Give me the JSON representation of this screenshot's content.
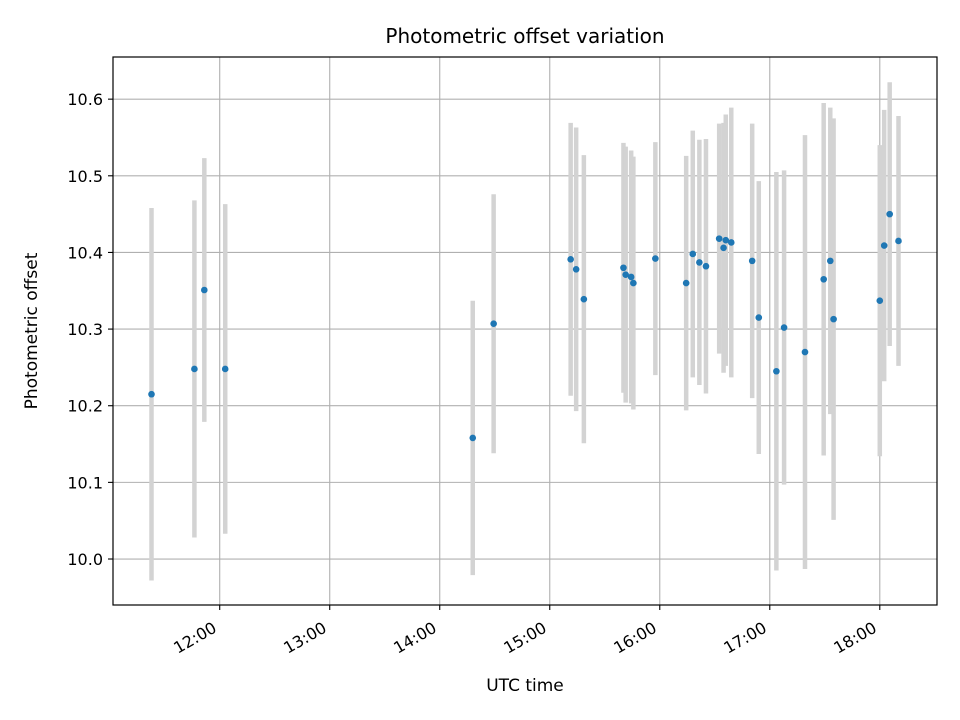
{
  "chart_data": {
    "type": "scatter",
    "title": "Photometric offset variation",
    "xlabel": "UTC time",
    "ylabel": "Photometric offset",
    "x_unit": "hours (UTC)",
    "xlim": [
      11.03,
      18.52
    ],
    "ylim": [
      9.94,
      10.655
    ],
    "x_ticks": [
      {
        "value": 12,
        "label": "12:00"
      },
      {
        "value": 13,
        "label": "13:00"
      },
      {
        "value": 14,
        "label": "14:00"
      },
      {
        "value": 15,
        "label": "15:00"
      },
      {
        "value": 16,
        "label": "16:00"
      },
      {
        "value": 17,
        "label": "17:00"
      },
      {
        "value": 18,
        "label": "18:00"
      }
    ],
    "y_ticks": [
      {
        "value": 10.0,
        "label": "10.0"
      },
      {
        "value": 10.1,
        "label": "10.1"
      },
      {
        "value": 10.2,
        "label": "10.2"
      },
      {
        "value": 10.3,
        "label": "10.3"
      },
      {
        "value": 10.4,
        "label": "10.4"
      },
      {
        "value": 10.5,
        "label": "10.5"
      },
      {
        "value": 10.6,
        "label": "10.6"
      }
    ],
    "grid": true,
    "colors": {
      "point": "#1f77b4",
      "errorbar": "#d3d3d3",
      "grid": "#b0b0b0"
    },
    "points": [
      {
        "x": 11.38,
        "y": 10.215,
        "err": 0.243
      },
      {
        "x": 11.77,
        "y": 10.248,
        "err": 0.22
      },
      {
        "x": 11.86,
        "y": 10.351,
        "err": 0.172
      },
      {
        "x": 12.05,
        "y": 10.248,
        "err": 0.215
      },
      {
        "x": 14.3,
        "y": 10.158,
        "err": 0.179
      },
      {
        "x": 14.49,
        "y": 10.307,
        "err": 0.169
      },
      {
        "x": 15.19,
        "y": 10.391,
        "err": 0.178
      },
      {
        "x": 15.24,
        "y": 10.378,
        "err": 0.185
      },
      {
        "x": 15.31,
        "y": 10.339,
        "err": 0.188
      },
      {
        "x": 15.67,
        "y": 10.38,
        "err": 0.163
      },
      {
        "x": 15.69,
        "y": 10.371,
        "err": 0.167
      },
      {
        "x": 15.74,
        "y": 10.368,
        "err": 0.165
      },
      {
        "x": 15.76,
        "y": 10.36,
        "err": 0.165
      },
      {
        "x": 15.96,
        "y": 10.392,
        "err": 0.152
      },
      {
        "x": 16.24,
        "y": 10.36,
        "err": 0.166
      },
      {
        "x": 16.3,
        "y": 10.398,
        "err": 0.161
      },
      {
        "x": 16.36,
        "y": 10.387,
        "err": 0.16
      },
      {
        "x": 16.42,
        "y": 10.382,
        "err": 0.166
      },
      {
        "x": 16.54,
        "y": 10.418,
        "err": 0.15
      },
      {
        "x": 16.58,
        "y": 10.406,
        "err": 0.163
      },
      {
        "x": 16.6,
        "y": 10.416,
        "err": 0.164
      },
      {
        "x": 16.65,
        "y": 10.413,
        "err": 0.176
      },
      {
        "x": 16.84,
        "y": 10.389,
        "err": 0.179
      },
      {
        "x": 16.9,
        "y": 10.315,
        "err": 0.178
      },
      {
        "x": 17.06,
        "y": 10.245,
        "err": 0.26
      },
      {
        "x": 17.13,
        "y": 10.302,
        "err": 0.205
      },
      {
        "x": 17.32,
        "y": 10.27,
        "err": 0.283
      },
      {
        "x": 17.49,
        "y": 10.365,
        "err": 0.23
      },
      {
        "x": 17.55,
        "y": 10.389,
        "err": 0.2
      },
      {
        "x": 17.58,
        "y": 10.313,
        "err": 0.262
      },
      {
        "x": 18.0,
        "y": 10.337,
        "err": 0.203
      },
      {
        "x": 18.04,
        "y": 10.409,
        "err": 0.177
      },
      {
        "x": 18.09,
        "y": 10.45,
        "err": 0.172
      },
      {
        "x": 18.17,
        "y": 10.415,
        "err": 0.163
      }
    ]
  }
}
